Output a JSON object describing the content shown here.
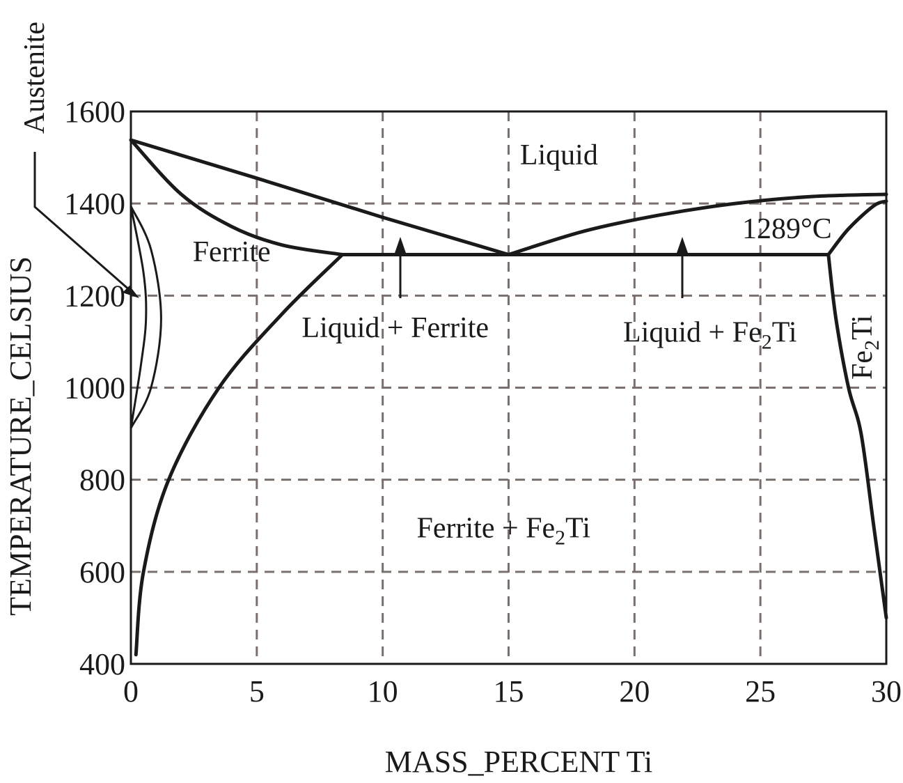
{
  "chart_data": {
    "type": "phase-diagram",
    "xlabel": "MASS_PERCENT Ti",
    "ylabel": "TEMPERATURE_CELSIUS",
    "xlim": [
      0,
      30
    ],
    "ylim": [
      400,
      1600
    ],
    "xticks": [
      0,
      5,
      10,
      15,
      20,
      25,
      30
    ],
    "yticks": [
      400,
      600,
      800,
      1000,
      1200,
      1400,
      1600
    ],
    "grid": true,
    "grid_style": "dashed",
    "regions": [
      {
        "id": "liquid",
        "label": "Liquid",
        "x": 17.0,
        "y": 1485
      },
      {
        "id": "ferrite",
        "label": "Ferrite",
        "x": 4.0,
        "y": 1275
      },
      {
        "id": "liquid-ferrite",
        "label": "Liquid + Ferrite",
        "x": 10.5,
        "y": 1110
      },
      {
        "id": "ferrite-fe2ti",
        "label": "Ferrite + Fe",
        "sub": "2",
        "suffix": "Ti",
        "x": 14.8,
        "y": 675
      },
      {
        "id": "liquid-fe2ti",
        "label": "Liquid + Fe",
        "sub": "2",
        "suffix": "Ti",
        "x": 23.0,
        "y": 1100
      }
    ],
    "annotations": {
      "austenite": "Austenite",
      "eutectic_temp": "1289°C",
      "fe2ti_prefix": "Fe",
      "fe2ti_sub": "2",
      "fe2ti_suffix": "Ti"
    },
    "boundaries": {
      "liquidus_left": [
        [
          0,
          1538
        ],
        [
          5,
          1455
        ],
        [
          10,
          1370
        ],
        [
          15,
          1289
        ]
      ],
      "solidus_ferrite": [
        [
          0,
          1538
        ],
        [
          2,
          1420
        ],
        [
          4,
          1350
        ],
        [
          6,
          1310
        ],
        [
          8.4,
          1289
        ]
      ],
      "eutectic_line": [
        [
          8.4,
          1289
        ],
        [
          27.7,
          1289
        ]
      ],
      "liquidus_right": [
        [
          15,
          1289
        ],
        [
          18,
          1340
        ],
        [
          21,
          1375
        ],
        [
          24,
          1400
        ],
        [
          27,
          1415
        ],
        [
          30,
          1420
        ]
      ],
      "fe2ti_left": [
        [
          27.7,
          1289
        ],
        [
          28.0,
          1150
        ],
        [
          28.5,
          1000
        ],
        [
          29.0,
          900
        ],
        [
          29.5,
          700
        ],
        [
          30,
          500
        ]
      ],
      "fe2ti_top": [
        [
          27.7,
          1289
        ],
        [
          28.5,
          1345
        ],
        [
          29.5,
          1395
        ],
        [
          30,
          1405
        ]
      ],
      "ferrite_solvus": [
        [
          0.2,
          420
        ],
        [
          0.5,
          600
        ],
        [
          1.5,
          800
        ],
        [
          3.5,
          1000
        ],
        [
          6,
          1160
        ],
        [
          8.4,
          1289
        ]
      ],
      "gamma_loop_outer": [
        [
          0,
          1394
        ],
        [
          0.8,
          1300
        ],
        [
          1.2,
          1150
        ],
        [
          0.8,
          1000
        ],
        [
          0,
          912
        ]
      ],
      "gamma_loop_inner": [
        [
          0,
          1394
        ],
        [
          0.5,
          1250
        ],
        [
          0.6,
          1150
        ],
        [
          0.4,
          1050
        ],
        [
          0,
          912
        ]
      ]
    }
  }
}
